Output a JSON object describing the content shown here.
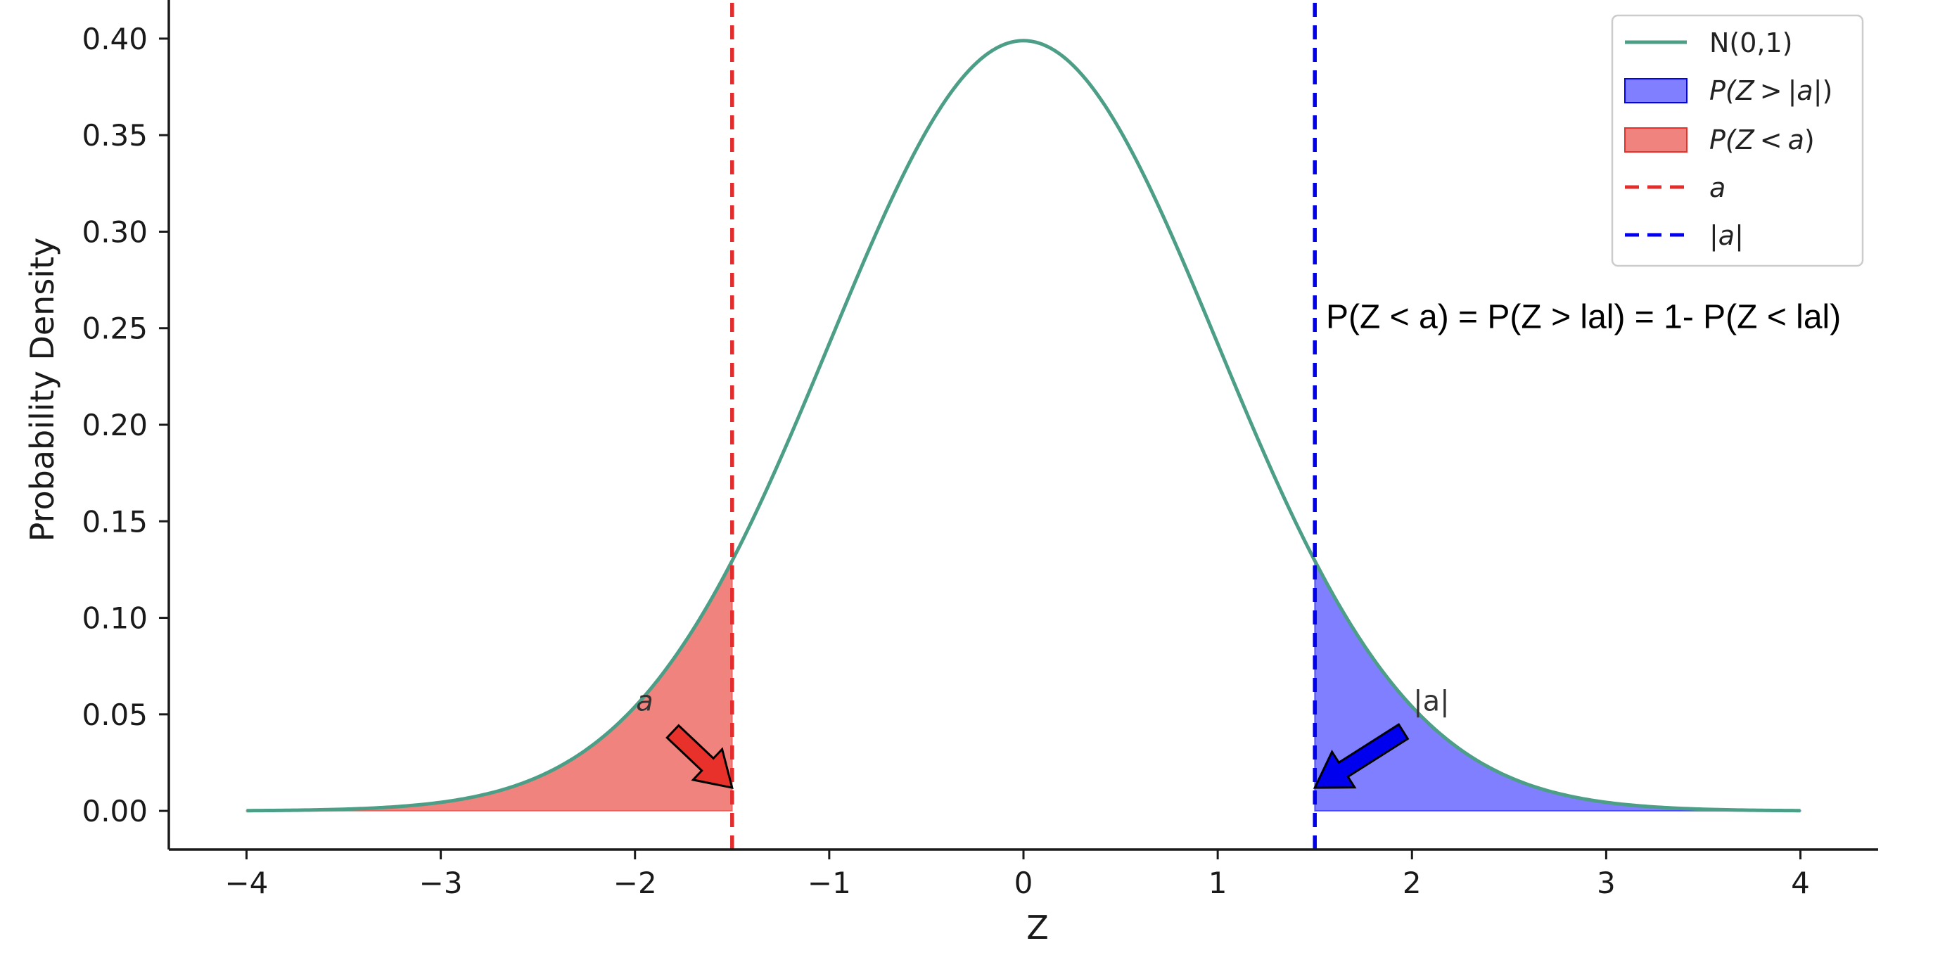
{
  "chart_data": {
    "type": "area",
    "xlabel": "Z",
    "ylabel": "Probability Density",
    "xlim": [
      -4.4,
      4.4
    ],
    "ylim": [
      -0.02,
      0.42
    ],
    "xticks": [
      -4,
      -3,
      -2,
      -1,
      0,
      1,
      2,
      3,
      4
    ],
    "xtick_labels": [
      "−4",
      "−3",
      "−2",
      "−1",
      "0",
      "1",
      "2",
      "3",
      "4"
    ],
    "yticks": [
      0.0,
      0.05,
      0.1,
      0.15,
      0.2,
      0.25,
      0.3,
      0.35,
      0.4
    ],
    "ytick_labels": [
      "0.00",
      "0.05",
      "0.10",
      "0.15",
      "0.20",
      "0.25",
      "0.30",
      "0.35",
      "0.40"
    ],
    "grid": false,
    "legend_placement": "top-right",
    "curve": {
      "name": "N(0,1)",
      "color": "#4c9f86",
      "x_range": [
        -4,
        4
      ],
      "mean": 0,
      "std": 1
    },
    "a_value": -1.5,
    "abs_a_value": 1.5,
    "fill_right": {
      "legend_prefix": "P(Z",
      "legend_op": ">",
      "legend_arg": "|a|",
      "legend_suffix": ")",
      "color": "#0000ff",
      "x_range": [
        1.5,
        4
      ]
    },
    "fill_left": {
      "legend_prefix": "P(Z",
      "legend_op": "<",
      "legend_arg": "a",
      "legend_suffix": ")",
      "color": "#e8312a",
      "x_range": [
        -4,
        -1.5
      ]
    },
    "vline_a": {
      "name": "a",
      "x": -1.5,
      "color": "#e32d2d"
    },
    "vline_abs_a": {
      "name": "|a|",
      "x": 1.5,
      "color": "#0000ee"
    },
    "annotations": [
      {
        "label": "a",
        "text_xy": [
          -1.95,
          0.052
        ],
        "arrow_to": [
          -1.5,
          0.012
        ],
        "arrow_color": "#e8312a"
      },
      {
        "label": "|a|",
        "text_xy": [
          2.1,
          0.052
        ],
        "arrow_to": [
          1.5,
          0.012
        ],
        "arrow_color": "#0000ee"
      }
    ],
    "equation": {
      "text": "P(Z < a) = P(Z > lal) = 1- P(Z < lal)",
      "xy": [
        1.55,
        0.25
      ]
    }
  }
}
